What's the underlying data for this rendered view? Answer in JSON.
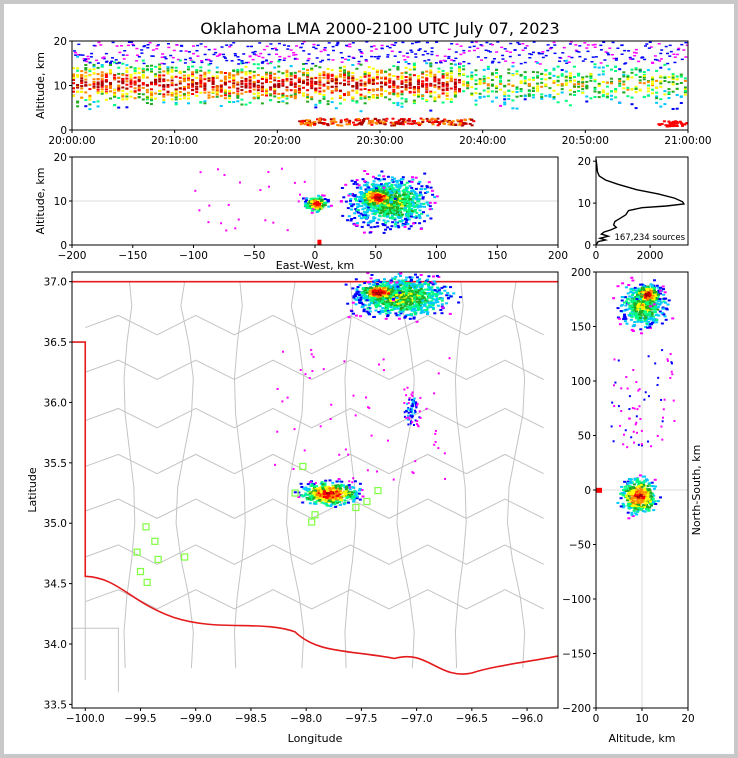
{
  "title": "Oklahoma LMA 2000-2100 UTC July 07, 2023",
  "chart_data": [
    {
      "type": "heatmap",
      "panel": "altitude-vs-time",
      "ylabel": "Altitude, km",
      "xlabel": "",
      "x_ticks": [
        "20:00:00",
        "20:10:00",
        "20:20:00",
        "20:30:00",
        "20:40:00",
        "20:50:00",
        "21:00:00"
      ],
      "y_ticks": [
        0,
        10,
        20
      ],
      "ylim": [
        0,
        20
      ]
    },
    {
      "type": "heatmap",
      "panel": "altitude-vs-east-west",
      "ylabel": "Altitude, km",
      "xlabel": "East-West, km",
      "x_ticks": [
        -200,
        -150,
        -100,
        -50,
        0,
        50,
        100,
        150,
        200
      ],
      "xlim": [
        -200,
        200
      ],
      "y_ticks": [
        0,
        10,
        20
      ],
      "ylim": [
        0,
        20
      ]
    },
    {
      "type": "line",
      "panel": "altitude-histogram",
      "annotation": "167,234 sources",
      "x_ticks": [
        0,
        2000
      ],
      "xlim": [
        0,
        3400
      ],
      "y_ticks": [
        0,
        10,
        20
      ],
      "ylim": [
        0,
        21
      ],
      "points": [
        [
          0,
          20.5
        ],
        [
          30,
          19
        ],
        [
          50,
          17.5
        ],
        [
          120,
          16.5
        ],
        [
          350,
          15.5
        ],
        [
          800,
          14.5
        ],
        [
          1500,
          13.2
        ],
        [
          2300,
          12.2
        ],
        [
          2900,
          11.2
        ],
        [
          3200,
          10.3
        ],
        [
          3250,
          9.8
        ],
        [
          2600,
          9.3
        ],
        [
          1700,
          8.9
        ],
        [
          1200,
          8.2
        ],
        [
          1100,
          7.2
        ],
        [
          900,
          6.4
        ],
        [
          700,
          5.6
        ],
        [
          650,
          4.8
        ],
        [
          750,
          4.2
        ],
        [
          550,
          3.6
        ],
        [
          300,
          3.1
        ],
        [
          200,
          2.6
        ],
        [
          450,
          2.1
        ],
        [
          150,
          1.6
        ],
        [
          350,
          1.2
        ],
        [
          80,
          0.8
        ],
        [
          30,
          0.3
        ],
        [
          0,
          0
        ]
      ]
    },
    {
      "type": "scatter",
      "panel": "plan-view-map",
      "xlabel": "Longitude",
      "ylabel": "Latitude",
      "x_ticks": [
        -100.0,
        -99.5,
        -99.0,
        -98.5,
        -98.0,
        -97.5,
        -97.0,
        -96.5,
        -96.0
      ],
      "xlim": [
        -100.12,
        -95.72
      ],
      "y_ticks": [
        33.5,
        34.0,
        34.5,
        35.0,
        35.5,
        36.0,
        36.5,
        37.0
      ],
      "ylim": [
        33.47,
        37.08
      ],
      "stations": [
        [
          -99.45,
          34.97
        ],
        [
          -99.37,
          34.85
        ],
        [
          -99.53,
          34.76
        ],
        [
          -99.34,
          34.7
        ],
        [
          -99.1,
          34.72
        ],
        [
          -99.5,
          34.6
        ],
        [
          -99.44,
          34.51
        ],
        [
          -98.03,
          35.47
        ],
        [
          -98.1,
          35.25
        ],
        [
          -97.95,
          35.01
        ],
        [
          -97.92,
          35.07
        ],
        [
          -97.55,
          35.13
        ],
        [
          -97.45,
          35.18
        ],
        [
          -97.35,
          35.27
        ]
      ]
    },
    {
      "type": "heatmap",
      "panel": "north-south-vs-altitude",
      "xlabel": "Altitude, km",
      "ylabel": "North-South, km",
      "x_ticks": [
        0,
        10,
        20
      ],
      "xlim": [
        0,
        20
      ],
      "y_ticks": [
        200,
        150,
        100,
        50,
        0,
        -50,
        -100,
        -150,
        -200
      ],
      "ylim": [
        -200,
        200
      ]
    }
  ],
  "colors": {
    "state_border": "#e41a1c",
    "county_lines": "#c4c4c4",
    "station_marker": "#7fff3f",
    "histogram_line": "#000000",
    "density_scale": [
      "#ff00ff",
      "#0000ff",
      "#00c8ff",
      "#00ff7f",
      "#22aa22",
      "#ffff00",
      "#ff8800",
      "#ff0000",
      "#aa0000"
    ]
  }
}
